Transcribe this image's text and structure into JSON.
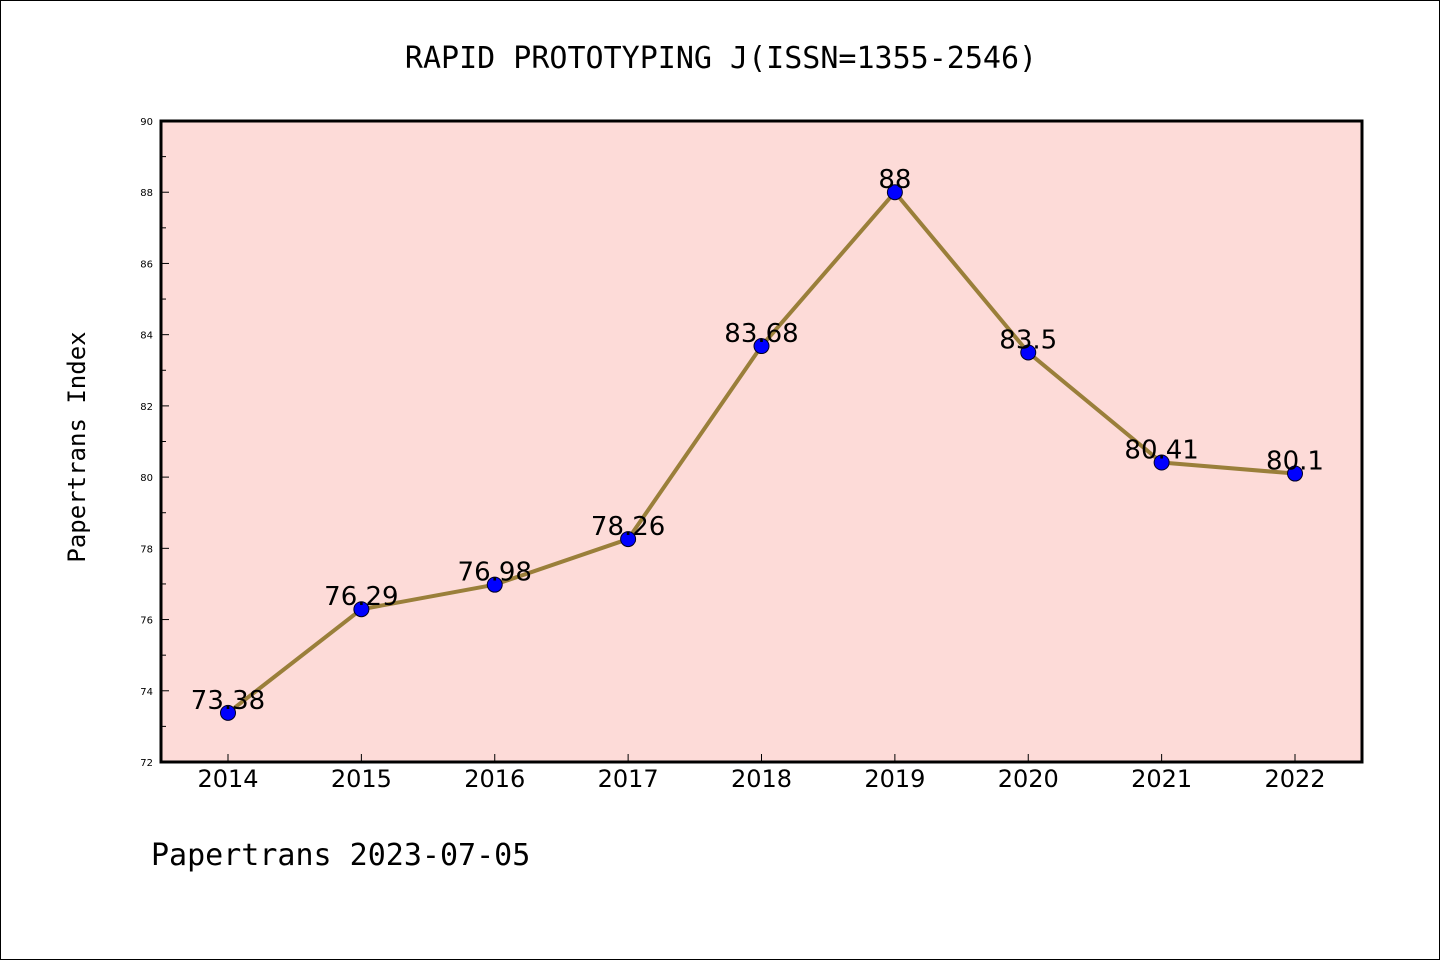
{
  "chart_data": {
    "type": "line",
    "title": "RAPID PROTOTYPING J(ISSN=1355-2546)",
    "xlabel": "",
    "ylabel": "Papertrans Index",
    "categories": [
      "2014",
      "2015",
      "2016",
      "2017",
      "2018",
      "2019",
      "2020",
      "2021",
      "2022"
    ],
    "series": [
      {
        "values": [
          73.38,
          76.29,
          76.98,
          78.26,
          83.68,
          88,
          83.5,
          80.41,
          80.1
        ],
        "labels": [
          "73.38",
          "76.29",
          "76.98",
          "78.26",
          "83.68",
          "88",
          "83.5",
          "80.41",
          "80.1"
        ]
      }
    ],
    "ylim": [
      72,
      90
    ],
    "yticks": [
      "72",
      "74",
      "76",
      "78",
      "80",
      "82",
      "84",
      "86",
      "88",
      "90"
    ],
    "grid": false,
    "legend": "none",
    "colors": {
      "plot_background": "#fddbd8",
      "line": "#9a7f3a",
      "marker": "#0000ff"
    }
  },
  "footer": {
    "text": "Papertrans 2023-07-05"
  }
}
